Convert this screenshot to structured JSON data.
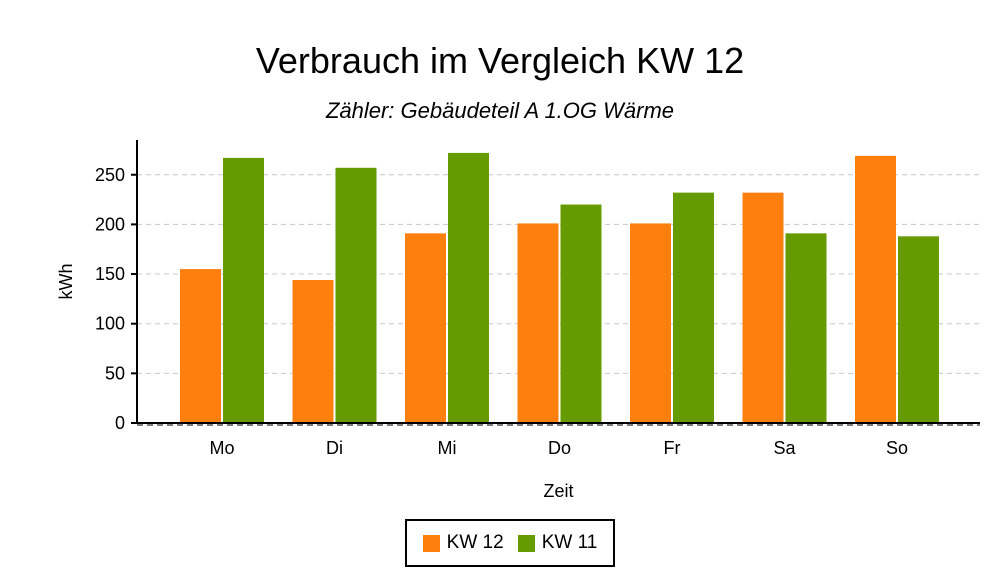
{
  "chart_data": {
    "type": "bar",
    "title": "Verbrauch im Vergleich KW 12",
    "subtitle": "Zähler: Gebäudeteil A 1.OG Wärme",
    "xlabel": "Zeit",
    "ylabel": "kWh",
    "categories": [
      "Mo",
      "Di",
      "Mi",
      "Do",
      "Fr",
      "Sa",
      "So"
    ],
    "series": [
      {
        "name": "KW 12",
        "color": "#ff7f0e",
        "values": [
          155,
          144,
          191,
          201,
          201,
          232,
          269
        ]
      },
      {
        "name": "KW 11",
        "color": "#669b00",
        "values": [
          267,
          257,
          272,
          220,
          232,
          191,
          188
        ]
      }
    ],
    "ylim": [
      0,
      285
    ],
    "yticks": [
      0,
      50,
      100,
      150,
      200,
      250
    ],
    "grid": "horizontal dashed",
    "legend_position": "bottom-center"
  }
}
